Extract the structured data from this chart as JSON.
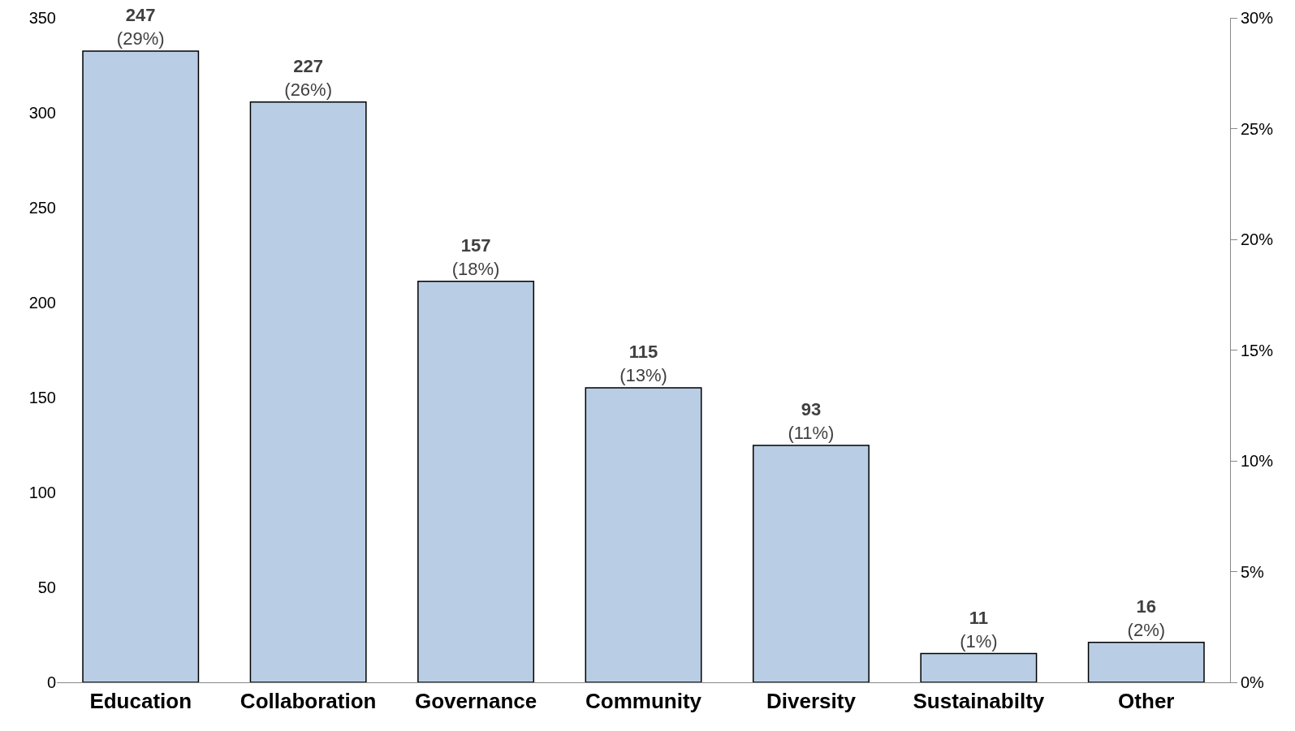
{
  "chart_data": {
    "type": "bar",
    "categories": [
      "Education",
      "Collaboration",
      "Governance",
      "Community",
      "Diversity",
      "Sustainabilty",
      "Other"
    ],
    "series": [
      {
        "color": "#b9cde5",
        "axis": "y2",
        "values": [
          28.5,
          26.2,
          18.1,
          13.3,
          10.7,
          1.3,
          1.8
        ],
        "value_labels": [
          "247\n(29%)",
          "227\n(26%)",
          "157\n(18%)",
          "115\n(13%)",
          "93\n(11%)",
          "11\n(1%)",
          "16\n(2%)"
        ]
      }
    ],
    "ylim": [
      0,
      350
    ],
    "yticks": [
      0,
      50,
      100,
      150,
      200,
      250,
      300,
      350
    ],
    "y2lim": [
      0,
      30
    ],
    "y2ticks": [
      {
        "value": 0,
        "label": "0%"
      },
      {
        "value": 5,
        "label": "5%"
      },
      {
        "value": 10,
        "label": "10%"
      },
      {
        "value": 15,
        "label": "15%"
      },
      {
        "value": 20,
        "label": "20%"
      },
      {
        "value": 25,
        "label": "25%"
      },
      {
        "value": 30,
        "label": "30%"
      }
    ],
    "grid": false
  }
}
